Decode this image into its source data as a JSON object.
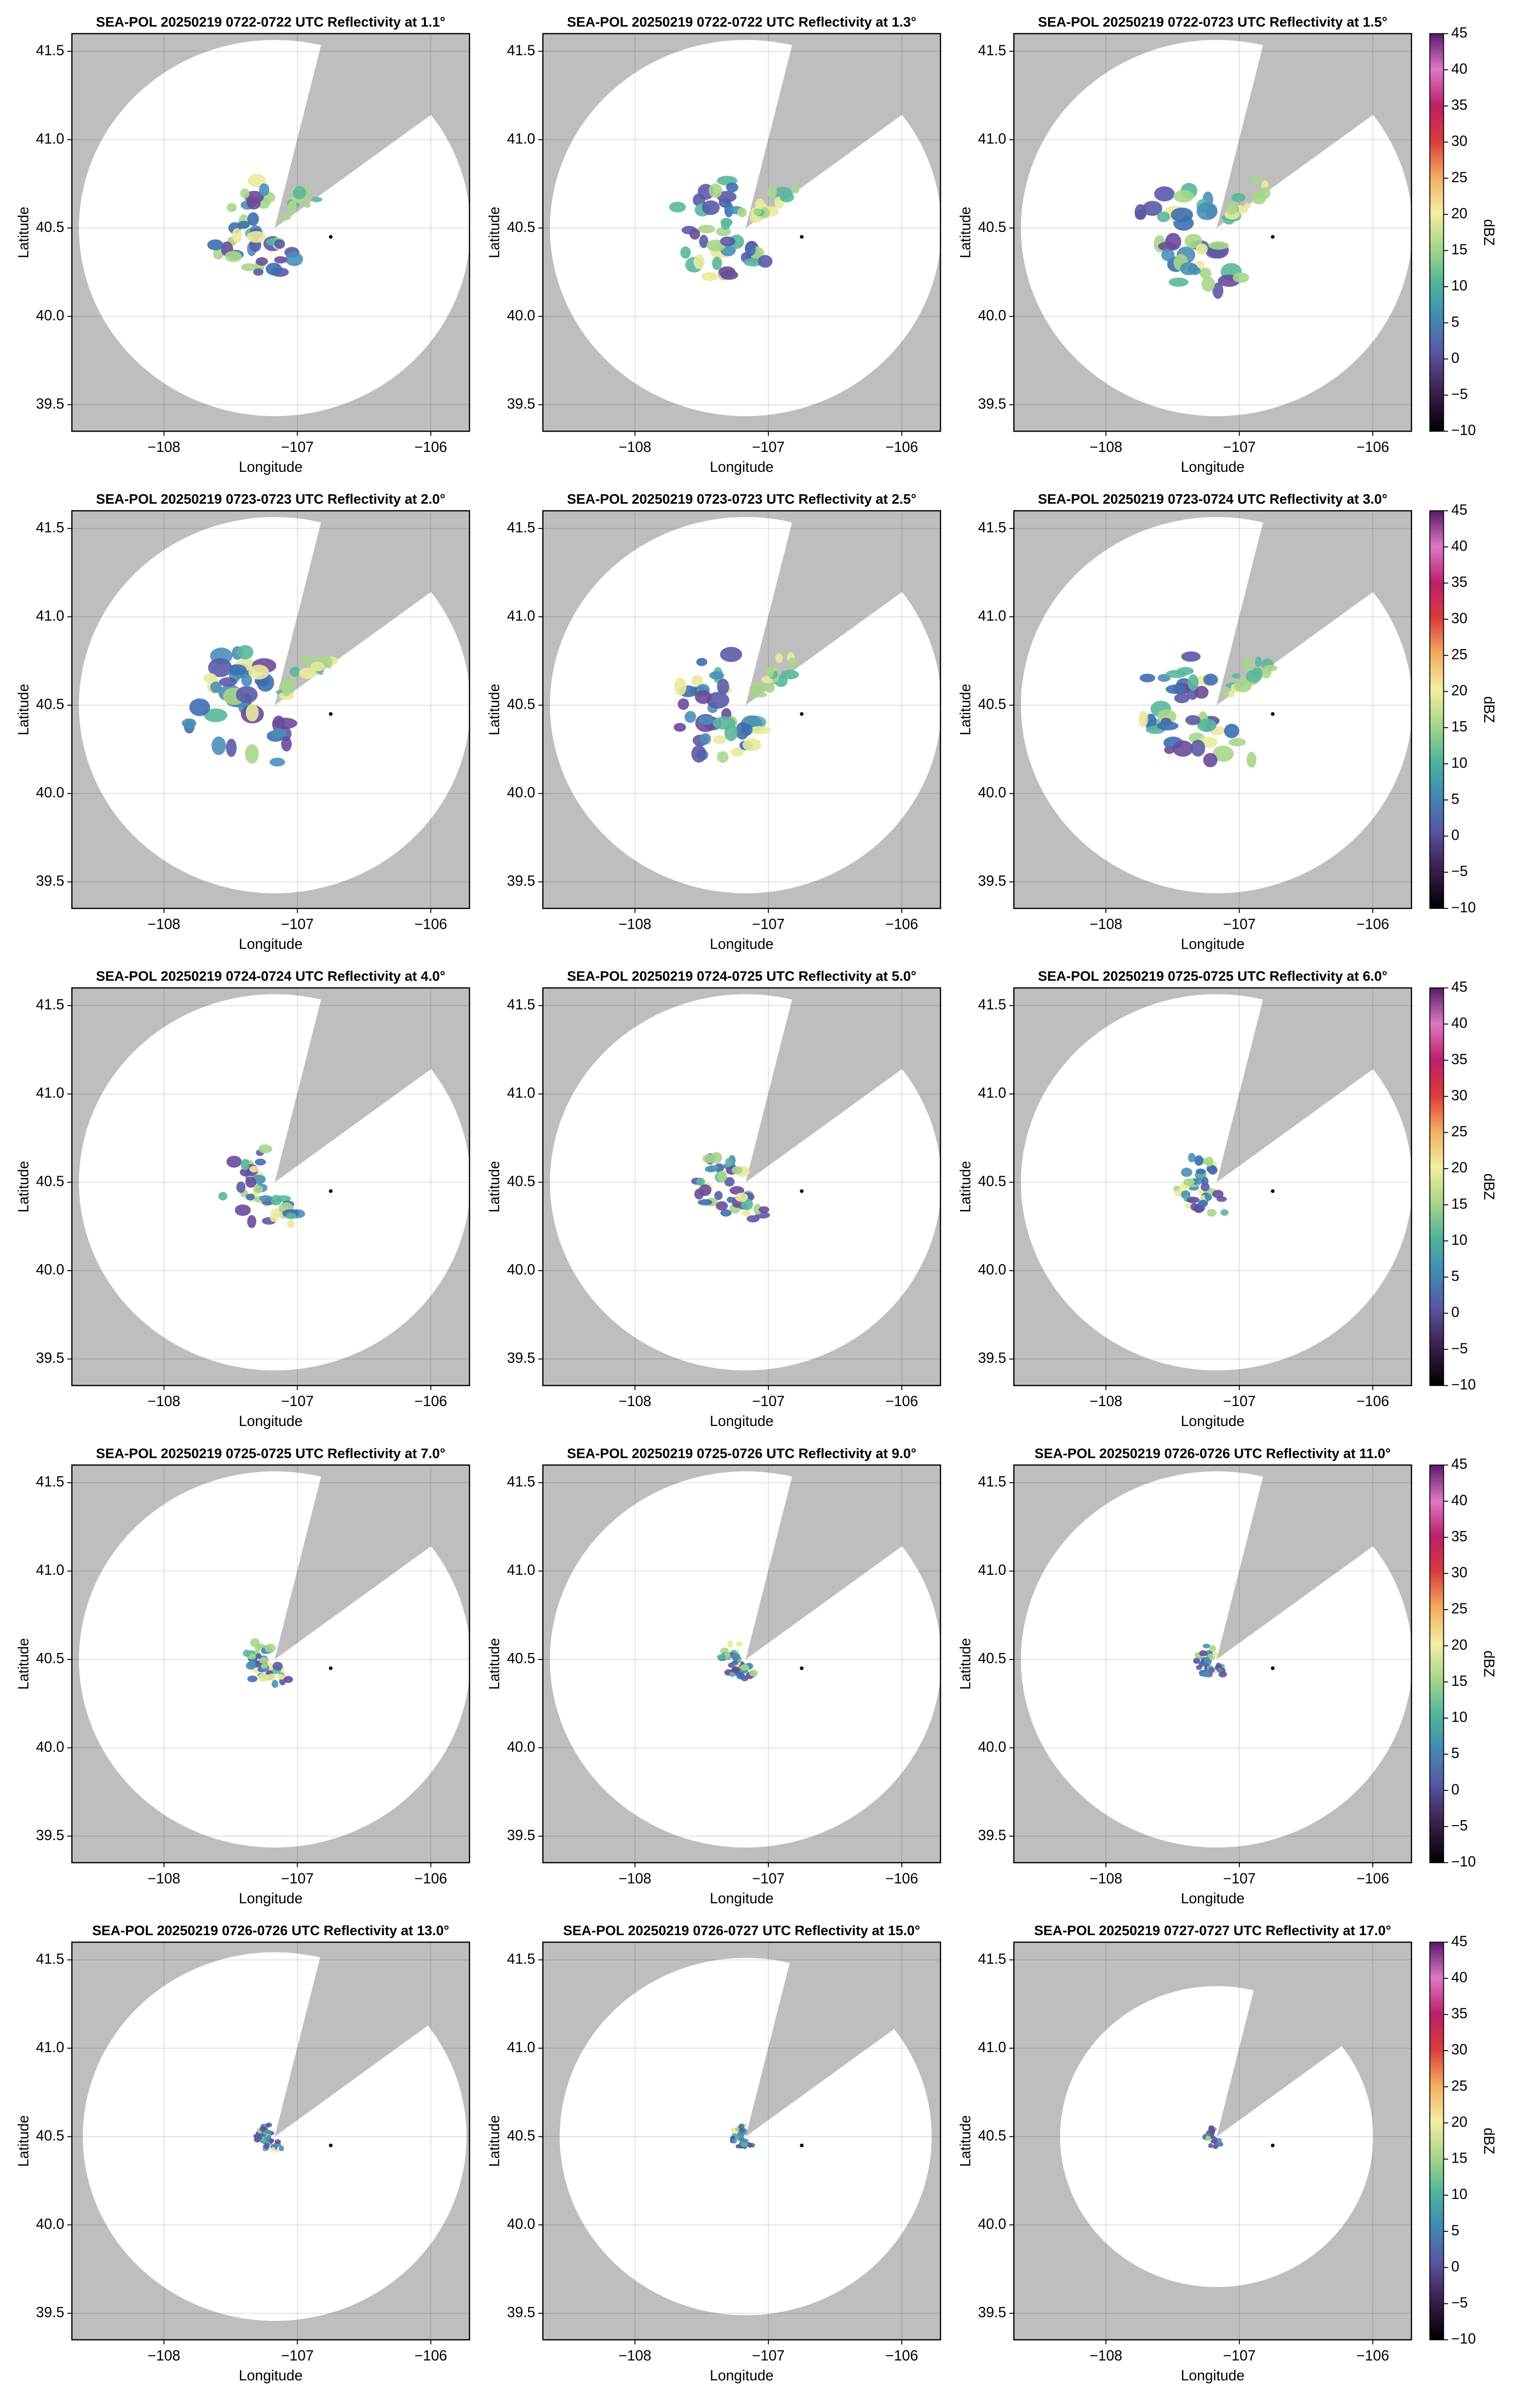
{
  "chart_data": [
    {
      "type": "radar-ppi",
      "title": "SEA-POL 20250219 0722-0722 UTC Reflectivity at 1.1°",
      "xlabel": "Longitude",
      "ylabel": "Latitude",
      "xlim": [
        -108.69,
        -105.71
      ],
      "ylim": [
        39.35,
        41.6
      ],
      "xticks": [
        {
          "value": -108,
          "label": "−108"
        },
        {
          "value": -107,
          "label": "−107"
        },
        {
          "value": -106,
          "label": "−106"
        }
      ],
      "yticks": [
        {
          "value": 39.5,
          "label": "39.5"
        },
        {
          "value": 40,
          "label": "40.0"
        },
        {
          "value": 40.5,
          "label": "40.5"
        },
        {
          "value": 41,
          "label": "41.0"
        },
        {
          "value": 41.5,
          "label": "41.5"
        }
      ],
      "grid": true
    },
    {
      "type": "radar-ppi",
      "title": "SEA-POL 20250219 0722-0722 UTC Reflectivity at 1.3°",
      "xlabel": "Longitude",
      "ylabel": "Latitude",
      "xlim": [
        -108.69,
        -105.71
      ],
      "ylim": [
        39.35,
        41.6
      ],
      "xticks": [
        {
          "value": -108,
          "label": "−108"
        },
        {
          "value": -107,
          "label": "−107"
        },
        {
          "value": -106,
          "label": "−106"
        }
      ],
      "yticks": [
        {
          "value": 39.5,
          "label": "39.5"
        },
        {
          "value": 40,
          "label": "40.0"
        },
        {
          "value": 40.5,
          "label": "40.5"
        },
        {
          "value": 41,
          "label": "41.0"
        },
        {
          "value": 41.5,
          "label": "41.5"
        }
      ],
      "grid": true
    },
    {
      "type": "radar-ppi",
      "title": "SEA-POL 20250219 0722-0723 UTC Reflectivity at 1.5°",
      "xlabel": "Longitude",
      "ylabel": "Latitude",
      "xlim": [
        -108.69,
        -105.71
      ],
      "ylim": [
        39.35,
        41.6
      ],
      "xticks": [
        {
          "value": -108,
          "label": "−108"
        },
        {
          "value": -107,
          "label": "−107"
        },
        {
          "value": -106,
          "label": "−106"
        }
      ],
      "yticks": [
        {
          "value": 39.5,
          "label": "39.5"
        },
        {
          "value": 40,
          "label": "40.0"
        },
        {
          "value": 40.5,
          "label": "40.5"
        },
        {
          "value": 41,
          "label": "41.0"
        },
        {
          "value": 41.5,
          "label": "41.5"
        }
      ],
      "grid": true,
      "colorbar": {
        "label": "dBZ",
        "lim": [
          -10,
          45
        ],
        "ticks": [
          {
            "value": -10,
            "label": "−10"
          },
          {
            "value": -5,
            "label": "−5"
          },
          0,
          5,
          10,
          15,
          20,
          25,
          30,
          35,
          40,
          45
        ]
      }
    },
    {
      "type": "radar-ppi",
      "title": "SEA-POL 20250219 0723-0723 UTC Reflectivity at 2.0°",
      "xlabel": "Longitude",
      "ylabel": "Latitude",
      "xlim": [
        -108.69,
        -105.71
      ],
      "ylim": [
        39.35,
        41.6
      ],
      "xticks": [
        {
          "value": -108,
          "label": "−108"
        },
        {
          "value": -107,
          "label": "−107"
        },
        {
          "value": -106,
          "label": "−106"
        }
      ],
      "yticks": [
        {
          "value": 39.5,
          "label": "39.5"
        },
        {
          "value": 40,
          "label": "40.0"
        },
        {
          "value": 40.5,
          "label": "40.5"
        },
        {
          "value": 41,
          "label": "41.0"
        },
        {
          "value": 41.5,
          "label": "41.5"
        }
      ],
      "grid": true
    },
    {
      "type": "radar-ppi",
      "title": "SEA-POL 20250219 0723-0723 UTC Reflectivity at 2.5°",
      "xlabel": "Longitude",
      "ylabel": "Latitude",
      "xlim": [
        -108.69,
        -105.71
      ],
      "ylim": [
        39.35,
        41.6
      ],
      "xticks": [
        {
          "value": -108,
          "label": "−108"
        },
        {
          "value": -107,
          "label": "−107"
        },
        {
          "value": -106,
          "label": "−106"
        }
      ],
      "yticks": [
        {
          "value": 39.5,
          "label": "39.5"
        },
        {
          "value": 40,
          "label": "40.0"
        },
        {
          "value": 40.5,
          "label": "40.5"
        },
        {
          "value": 41,
          "label": "41.0"
        },
        {
          "value": 41.5,
          "label": "41.5"
        }
      ],
      "grid": true
    },
    {
      "type": "radar-ppi",
      "title": "SEA-POL 20250219 0723-0724 UTC Reflectivity at 3.0°",
      "xlabel": "Longitude",
      "ylabel": "Latitude",
      "xlim": [
        -108.69,
        -105.71
      ],
      "ylim": [
        39.35,
        41.6
      ],
      "xticks": [
        {
          "value": -108,
          "label": "−108"
        },
        {
          "value": -107,
          "label": "−107"
        },
        {
          "value": -106,
          "label": "−106"
        }
      ],
      "yticks": [
        {
          "value": 39.5,
          "label": "39.5"
        },
        {
          "value": 40,
          "label": "40.0"
        },
        {
          "value": 40.5,
          "label": "40.5"
        },
        {
          "value": 41,
          "label": "41.0"
        },
        {
          "value": 41.5,
          "label": "41.5"
        }
      ],
      "grid": true,
      "colorbar": {
        "label": "dBZ",
        "lim": [
          -10,
          45
        ],
        "ticks": [
          {
            "value": -10,
            "label": "−10"
          },
          {
            "value": -5,
            "label": "−5"
          },
          0,
          5,
          10,
          15,
          20,
          25,
          30,
          35,
          40,
          45
        ]
      }
    },
    {
      "type": "radar-ppi",
      "title": "SEA-POL 20250219 0724-0724 UTC Reflectivity at 4.0°",
      "xlabel": "Longitude",
      "ylabel": "Latitude",
      "xlim": [
        -108.69,
        -105.71
      ],
      "ylim": [
        39.35,
        41.6
      ],
      "xticks": [
        {
          "value": -108,
          "label": "−108"
        },
        {
          "value": -107,
          "label": "−107"
        },
        {
          "value": -106,
          "label": "−106"
        }
      ],
      "yticks": [
        {
          "value": 39.5,
          "label": "39.5"
        },
        {
          "value": 40,
          "label": "40.0"
        },
        {
          "value": 40.5,
          "label": "40.5"
        },
        {
          "value": 41,
          "label": "41.0"
        },
        {
          "value": 41.5,
          "label": "41.5"
        }
      ],
      "grid": true
    },
    {
      "type": "radar-ppi",
      "title": "SEA-POL 20250219 0724-0725 UTC Reflectivity at 5.0°",
      "xlabel": "Longitude",
      "ylabel": "Latitude",
      "xlim": [
        -108.69,
        -105.71
      ],
      "ylim": [
        39.35,
        41.6
      ],
      "xticks": [
        {
          "value": -108,
          "label": "−108"
        },
        {
          "value": -107,
          "label": "−107"
        },
        {
          "value": -106,
          "label": "−106"
        }
      ],
      "yticks": [
        {
          "value": 39.5,
          "label": "39.5"
        },
        {
          "value": 40,
          "label": "40.0"
        },
        {
          "value": 40.5,
          "label": "40.5"
        },
        {
          "value": 41,
          "label": "41.0"
        },
        {
          "value": 41.5,
          "label": "41.5"
        }
      ],
      "grid": true
    },
    {
      "type": "radar-ppi",
      "title": "SEA-POL 20250219 0725-0725 UTC Reflectivity at 6.0°",
      "xlabel": "Longitude",
      "ylabel": "Latitude",
      "xlim": [
        -108.69,
        -105.71
      ],
      "ylim": [
        39.35,
        41.6
      ],
      "xticks": [
        {
          "value": -108,
          "label": "−108"
        },
        {
          "value": -107,
          "label": "−107"
        },
        {
          "value": -106,
          "label": "−106"
        }
      ],
      "yticks": [
        {
          "value": 39.5,
          "label": "39.5"
        },
        {
          "value": 40,
          "label": "40.0"
        },
        {
          "value": 40.5,
          "label": "40.5"
        },
        {
          "value": 41,
          "label": "41.0"
        },
        {
          "value": 41.5,
          "label": "41.5"
        }
      ],
      "grid": true,
      "colorbar": {
        "label": "dBZ",
        "lim": [
          -10,
          45
        ],
        "ticks": [
          {
            "value": -10,
            "label": "−10"
          },
          {
            "value": -5,
            "label": "−5"
          },
          0,
          5,
          10,
          15,
          20,
          25,
          30,
          35,
          40,
          45
        ]
      }
    },
    {
      "type": "radar-ppi",
      "title": "SEA-POL 20250219 0725-0725 UTC Reflectivity at 7.0°",
      "xlabel": "Longitude",
      "ylabel": "Latitude",
      "xlim": [
        -108.69,
        -105.71
      ],
      "ylim": [
        39.35,
        41.6
      ],
      "xticks": [
        {
          "value": -108,
          "label": "−108"
        },
        {
          "value": -107,
          "label": "−107"
        },
        {
          "value": -106,
          "label": "−106"
        }
      ],
      "yticks": [
        {
          "value": 39.5,
          "label": "39.5"
        },
        {
          "value": 40,
          "label": "40.0"
        },
        {
          "value": 40.5,
          "label": "40.5"
        },
        {
          "value": 41,
          "label": "41.0"
        },
        {
          "value": 41.5,
          "label": "41.5"
        }
      ],
      "grid": true
    },
    {
      "type": "radar-ppi",
      "title": "SEA-POL 20250219 0725-0726 UTC Reflectivity at 9.0°",
      "xlabel": "Longitude",
      "ylabel": "Latitude",
      "xlim": [
        -108.69,
        -105.71
      ],
      "ylim": [
        39.35,
        41.6
      ],
      "xticks": [
        {
          "value": -108,
          "label": "−108"
        },
        {
          "value": -107,
          "label": "−107"
        },
        {
          "value": -106,
          "label": "−106"
        }
      ],
      "yticks": [
        {
          "value": 39.5,
          "label": "39.5"
        },
        {
          "value": 40,
          "label": "40.0"
        },
        {
          "value": 40.5,
          "label": "40.5"
        },
        {
          "value": 41,
          "label": "41.0"
        },
        {
          "value": 41.5,
          "label": "41.5"
        }
      ],
      "grid": true
    },
    {
      "type": "radar-ppi",
      "title": "SEA-POL 20250219 0726-0726 UTC Reflectivity at 11.0°",
      "xlabel": "Longitude",
      "ylabel": "Latitude",
      "xlim": [
        -108.69,
        -105.71
      ],
      "ylim": [
        39.35,
        41.6
      ],
      "xticks": [
        {
          "value": -108,
          "label": "−108"
        },
        {
          "value": -107,
          "label": "−107"
        },
        {
          "value": -106,
          "label": "−106"
        }
      ],
      "yticks": [
        {
          "value": 39.5,
          "label": "39.5"
        },
        {
          "value": 40,
          "label": "40.0"
        },
        {
          "value": 40.5,
          "label": "40.5"
        },
        {
          "value": 41,
          "label": "41.0"
        },
        {
          "value": 41.5,
          "label": "41.5"
        }
      ],
      "grid": true,
      "colorbar": {
        "label": "dBZ",
        "lim": [
          -10,
          45
        ],
        "ticks": [
          {
            "value": -10,
            "label": "−10"
          },
          {
            "value": -5,
            "label": "−5"
          },
          0,
          5,
          10,
          15,
          20,
          25,
          30,
          35,
          40,
          45
        ]
      }
    },
    {
      "type": "radar-ppi",
      "title": "SEA-POL 20250219 0726-0726 UTC Reflectivity at 13.0°",
      "xlabel": "Longitude",
      "ylabel": "Latitude",
      "xlim": [
        -108.69,
        -105.71
      ],
      "ylim": [
        39.35,
        41.6
      ],
      "xticks": [
        {
          "value": -108,
          "label": "−108"
        },
        {
          "value": -107,
          "label": "−107"
        },
        {
          "value": -106,
          "label": "−106"
        }
      ],
      "yticks": [
        {
          "value": 39.5,
          "label": "39.5"
        },
        {
          "value": 40,
          "label": "40.0"
        },
        {
          "value": 40.5,
          "label": "40.5"
        },
        {
          "value": 41,
          "label": "41.0"
        },
        {
          "value": 41.5,
          "label": "41.5"
        }
      ],
      "grid": true
    },
    {
      "type": "radar-ppi",
      "title": "SEA-POL 20250219 0726-0727 UTC Reflectivity at 15.0°",
      "xlabel": "Longitude",
      "ylabel": "Latitude",
      "xlim": [
        -108.69,
        -105.71
      ],
      "ylim": [
        39.35,
        41.6
      ],
      "xticks": [
        {
          "value": -108,
          "label": "−108"
        },
        {
          "value": -107,
          "label": "−107"
        },
        {
          "value": -106,
          "label": "−106"
        }
      ],
      "yticks": [
        {
          "value": 39.5,
          "label": "39.5"
        },
        {
          "value": 40,
          "label": "40.0"
        },
        {
          "value": 40.5,
          "label": "40.5"
        },
        {
          "value": 41,
          "label": "41.0"
        },
        {
          "value": 41.5,
          "label": "41.5"
        }
      ],
      "grid": true
    },
    {
      "type": "radar-ppi",
      "title": "SEA-POL 20250219 0727-0727 UTC Reflectivity at 17.0°",
      "xlabel": "Longitude",
      "ylabel": "Latitude",
      "xlim": [
        -108.69,
        -105.71
      ],
      "ylim": [
        39.35,
        41.6
      ],
      "xticks": [
        {
          "value": -108,
          "label": "−108"
        },
        {
          "value": -107,
          "label": "−107"
        },
        {
          "value": -106,
          "label": "−106"
        }
      ],
      "yticks": [
        {
          "value": 39.5,
          "label": "39.5"
        },
        {
          "value": 40,
          "label": "40.0"
        },
        {
          "value": 40.5,
          "label": "40.5"
        },
        {
          "value": 41,
          "label": "41.0"
        },
        {
          "value": 41.5,
          "label": "41.5"
        }
      ],
      "grid": true,
      "colorbar": {
        "label": "dBZ",
        "lim": [
          -10,
          45
        ],
        "ticks": [
          {
            "value": -10,
            "label": "−10"
          },
          {
            "value": -5,
            "label": "−5"
          },
          0,
          5,
          10,
          15,
          20,
          25,
          30,
          35,
          40,
          45
        ]
      }
    }
  ]
}
